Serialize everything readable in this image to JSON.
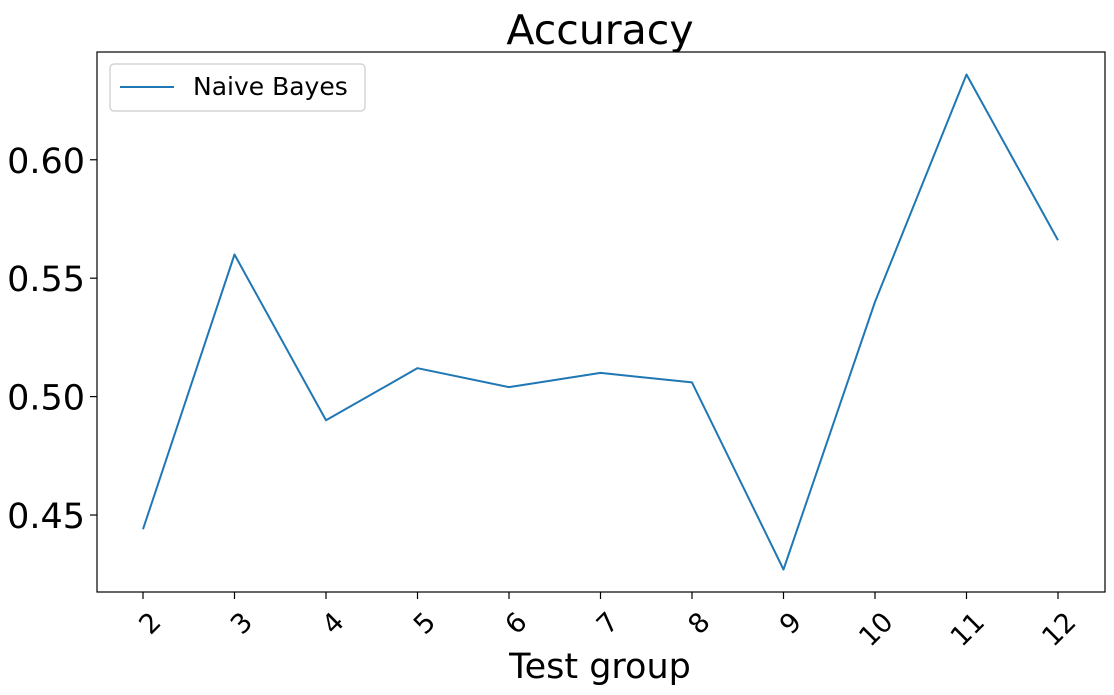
{
  "chart_data": {
    "type": "line",
    "title": "Accuracy",
    "xlabel": "Test group",
    "ylabel": "",
    "categories": [
      "2",
      "3",
      "4",
      "5",
      "6",
      "7",
      "8",
      "9",
      "10",
      "11",
      "12"
    ],
    "series": [
      {
        "name": "Naive Bayes",
        "color": "#1f77b4",
        "values": [
          0.444,
          0.56,
          0.49,
          0.512,
          0.504,
          0.51,
          0.506,
          0.427,
          0.54,
          0.636,
          0.566
        ]
      }
    ],
    "yticks": [
      "0.45",
      "0.50",
      "0.55",
      "0.60"
    ],
    "ylim": [
      0.4175,
      0.6455
    ],
    "grid": false,
    "legend_position": "top-left"
  }
}
